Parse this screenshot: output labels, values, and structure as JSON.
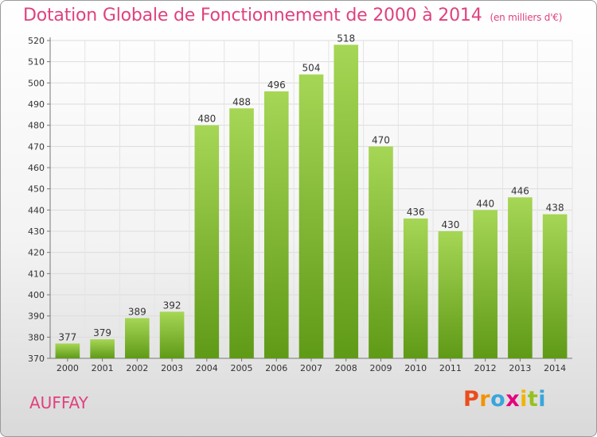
{
  "header": {
    "title": "Dotation Globale de Fonctionnement de 2000 à 2014",
    "unit": "(en milliers d'€)"
  },
  "footer": {
    "commune": "AUFFAY",
    "logo_letters": [
      "P",
      "r",
      "o",
      "x",
      "i",
      "t",
      "i"
    ],
    "logo_colors": [
      "#e94e1b",
      "#f39200",
      "#3aa5dc",
      "#e6007e",
      "#f0b400",
      "#95c11f",
      "#3aa5dc"
    ]
  },
  "chart_data": {
    "type": "bar",
    "title": "Dotation Globale de Fonctionnement de 2000 à 2014",
    "subtitle": "(en milliers d'€)",
    "xlabel": "",
    "ylabel": "",
    "categories": [
      "2000",
      "2001",
      "2002",
      "2003",
      "2004",
      "2005",
      "2006",
      "2007",
      "2008",
      "2009",
      "2010",
      "2011",
      "2012",
      "2013",
      "2014"
    ],
    "values": [
      377,
      379,
      389,
      392,
      480,
      488,
      496,
      504,
      518,
      470,
      436,
      430,
      440,
      446,
      438
    ],
    "ylim": [
      370,
      520
    ],
    "yticks": [
      370,
      380,
      390,
      400,
      410,
      420,
      430,
      440,
      450,
      460,
      470,
      480,
      490,
      500,
      510,
      520
    ],
    "grid": true,
    "bar_color": "#8cc63f",
    "legend": "none"
  }
}
